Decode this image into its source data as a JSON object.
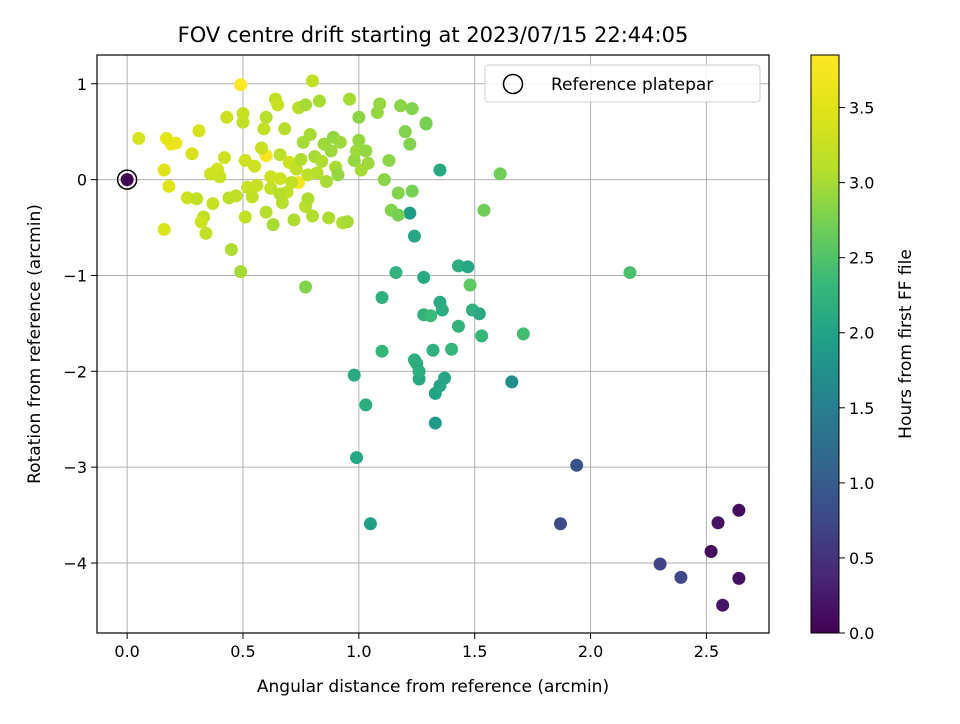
{
  "chart_data": {
    "type": "scatter",
    "title": "FOV centre drift starting at 2023/07/15 22:44:05",
    "xlabel": "Angular distance from reference (arcmin)",
    "ylabel": "Rotation from reference (arcmin)",
    "xlim": [
      -0.13,
      2.77
    ],
    "ylim": [
      -4.73,
      1.3
    ],
    "x_ticks": [
      "0.0",
      "0.5",
      "1.0",
      "1.5",
      "2.0",
      "2.5"
    ],
    "y_ticks": [
      "1",
      "0",
      "−1",
      "−2",
      "−3",
      "−4"
    ],
    "grid": true,
    "legend": {
      "position": "top-right",
      "label": "Reference platepar"
    },
    "reference_point": {
      "x": 0.0,
      "y": 0.0
    },
    "colorbar": {
      "label": "Hours from first FF file",
      "range": [
        0.0,
        3.85
      ],
      "ticks": [
        "0.0",
        "0.5",
        "1.0",
        "1.5",
        "2.0",
        "2.5",
        "3.0",
        "3.5"
      ],
      "colormap": "viridis"
    },
    "points": [
      {
        "x": 0.0,
        "y": 0.0,
        "h": 0.0
      },
      {
        "x": 2.64,
        "y": -3.45,
        "h": 0.12
      },
      {
        "x": 2.55,
        "y": -3.58,
        "h": 0.18
      },
      {
        "x": 2.52,
        "y": -3.88,
        "h": 0.1
      },
      {
        "x": 2.64,
        "y": -4.16,
        "h": 0.15
      },
      {
        "x": 2.57,
        "y": -4.44,
        "h": 0.2
      },
      {
        "x": 2.3,
        "y": -4.01,
        "h": 0.7
      },
      {
        "x": 2.39,
        "y": -4.15,
        "h": 0.75
      },
      {
        "x": 1.87,
        "y": -3.59,
        "h": 0.8
      },
      {
        "x": 1.94,
        "y": -2.98,
        "h": 0.9
      },
      {
        "x": 1.66,
        "y": -2.11,
        "h": 1.7
      },
      {
        "x": 1.05,
        "y": -3.59,
        "h": 1.95
      },
      {
        "x": 0.99,
        "y": -2.9,
        "h": 2.05
      },
      {
        "x": 0.98,
        "y": -2.04,
        "h": 2.1
      },
      {
        "x": 1.03,
        "y": -2.35,
        "h": 2.15
      },
      {
        "x": 1.33,
        "y": -2.54,
        "h": 1.9
      },
      {
        "x": 1.33,
        "y": -2.23,
        "h": 2.0
      },
      {
        "x": 1.37,
        "y": -2.07,
        "h": 2.05
      },
      {
        "x": 1.35,
        "y": -2.15,
        "h": 2.05
      },
      {
        "x": 1.26,
        "y": -2.08,
        "h": 2.1
      },
      {
        "x": 1.26,
        "y": -2.0,
        "h": 2.15
      },
      {
        "x": 1.24,
        "y": -1.88,
        "h": 2.2
      },
      {
        "x": 1.25,
        "y": -1.92,
        "h": 2.15
      },
      {
        "x": 1.32,
        "y": -1.78,
        "h": 2.2
      },
      {
        "x": 1.1,
        "y": -1.79,
        "h": 2.3
      },
      {
        "x": 1.4,
        "y": -1.77,
        "h": 2.3
      },
      {
        "x": 1.28,
        "y": -1.41,
        "h": 2.25
      },
      {
        "x": 1.31,
        "y": -1.42,
        "h": 2.35
      },
      {
        "x": 1.35,
        "y": -1.28,
        "h": 2.1
      },
      {
        "x": 1.36,
        "y": -1.36,
        "h": 2.15
      },
      {
        "x": 1.43,
        "y": -1.53,
        "h": 2.25
      },
      {
        "x": 1.49,
        "y": -1.36,
        "h": 2.2
      },
      {
        "x": 1.52,
        "y": -1.4,
        "h": 2.1
      },
      {
        "x": 1.53,
        "y": -1.63,
        "h": 2.3
      },
      {
        "x": 1.71,
        "y": -1.61,
        "h": 2.4
      },
      {
        "x": 1.1,
        "y": -1.23,
        "h": 2.2
      },
      {
        "x": 1.16,
        "y": -0.97,
        "h": 2.25
      },
      {
        "x": 1.28,
        "y": -1.02,
        "h": 2.1
      },
      {
        "x": 1.43,
        "y": -0.9,
        "h": 2.15
      },
      {
        "x": 1.47,
        "y": -0.91,
        "h": 2.05
      },
      {
        "x": 1.48,
        "y": -1.1,
        "h": 2.6
      },
      {
        "x": 1.24,
        "y": -0.59,
        "h": 2.05
      },
      {
        "x": 1.22,
        "y": -0.35,
        "h": 1.9
      },
      {
        "x": 1.35,
        "y": 0.1,
        "h": 2.1
      },
      {
        "x": 2.17,
        "y": -0.97,
        "h": 2.45
      },
      {
        "x": 1.54,
        "y": -0.32,
        "h": 2.7
      },
      {
        "x": 1.61,
        "y": 0.06,
        "h": 2.7
      },
      {
        "x": 0.77,
        "y": -1.12,
        "h": 2.8
      },
      {
        "x": 0.49,
        "y": -0.96,
        "h": 3.0
      },
      {
        "x": 0.45,
        "y": -0.73,
        "h": 3.05
      },
      {
        "x": 0.16,
        "y": -0.52,
        "h": 3.45
      },
      {
        "x": 0.34,
        "y": -0.56,
        "h": 3.2
      },
      {
        "x": 0.49,
        "y": 0.99,
        "h": 3.85
      },
      {
        "x": 0.6,
        "y": 0.25,
        "h": 3.8
      },
      {
        "x": 0.74,
        "y": -0.03,
        "h": 3.8
      },
      {
        "x": 0.19,
        "y": 0.37,
        "h": 3.7
      },
      {
        "x": 0.21,
        "y": 0.38,
        "h": 3.65
      },
      {
        "x": 0.17,
        "y": 0.43,
        "h": 3.55
      },
      {
        "x": 0.05,
        "y": 0.43,
        "h": 3.4
      },
      {
        "x": 0.16,
        "y": 0.1,
        "h": 3.5
      },
      {
        "x": 0.18,
        "y": -0.07,
        "h": 3.5
      },
      {
        "x": 0.26,
        "y": -0.19,
        "h": 3.3
      },
      {
        "x": 0.28,
        "y": 0.27,
        "h": 3.4
      },
      {
        "x": 0.31,
        "y": 0.51,
        "h": 3.4
      },
      {
        "x": 0.33,
        "y": -0.39,
        "h": 3.2
      },
      {
        "x": 0.32,
        "y": -0.44,
        "h": 3.3
      },
      {
        "x": 0.3,
        "y": -0.2,
        "h": 3.2
      },
      {
        "x": 0.36,
        "y": 0.06,
        "h": 3.3
      },
      {
        "x": 0.39,
        "y": 0.11,
        "h": 3.35
      },
      {
        "x": 0.37,
        "y": -0.25,
        "h": 3.25
      },
      {
        "x": 0.42,
        "y": 0.23,
        "h": 3.3
      },
      {
        "x": 0.43,
        "y": 0.65,
        "h": 3.3
      },
      {
        "x": 0.44,
        "y": -0.19,
        "h": 3.15
      },
      {
        "x": 0.4,
        "y": 0.03,
        "h": 3.3
      },
      {
        "x": 0.47,
        "y": -0.17,
        "h": 3.2
      },
      {
        "x": 0.5,
        "y": 0.6,
        "h": 3.2
      },
      {
        "x": 0.5,
        "y": 0.69,
        "h": 3.25
      },
      {
        "x": 0.51,
        "y": 0.2,
        "h": 3.3
      },
      {
        "x": 0.52,
        "y": -0.08,
        "h": 3.25
      },
      {
        "x": 0.51,
        "y": -0.39,
        "h": 3.2
      },
      {
        "x": 0.54,
        "y": -0.18,
        "h": 3.2
      },
      {
        "x": 0.55,
        "y": 0.14,
        "h": 3.3
      },
      {
        "x": 0.58,
        "y": 0.33,
        "h": 3.25
      },
      {
        "x": 0.59,
        "y": 0.53,
        "h": 3.2
      },
      {
        "x": 0.6,
        "y": 0.65,
        "h": 3.1
      },
      {
        "x": 0.6,
        "y": -0.34,
        "h": 3.1
      },
      {
        "x": 0.62,
        "y": -0.09,
        "h": 3.2
      },
      {
        "x": 0.63,
        "y": -0.47,
        "h": 3.0
      },
      {
        "x": 0.64,
        "y": 0.84,
        "h": 3.2
      },
      {
        "x": 0.65,
        "y": 0.78,
        "h": 3.25
      },
      {
        "x": 0.66,
        "y": 0.26,
        "h": 3.15
      },
      {
        "x": 0.66,
        "y": 0.01,
        "h": 3.3
      },
      {
        "x": 0.67,
        "y": -0.24,
        "h": 3.1
      },
      {
        "x": 0.68,
        "y": 0.53,
        "h": 3.1
      },
      {
        "x": 0.69,
        "y": -0.13,
        "h": 3.2
      },
      {
        "x": 0.7,
        "y": 0.18,
        "h": 3.3
      },
      {
        "x": 0.71,
        "y": -0.03,
        "h": 3.2
      },
      {
        "x": 0.72,
        "y": -0.42,
        "h": 3.05
      },
      {
        "x": 0.73,
        "y": 0.11,
        "h": 3.2
      },
      {
        "x": 0.74,
        "y": 0.75,
        "h": 3.1
      },
      {
        "x": 0.75,
        "y": 0.21,
        "h": 3.05
      },
      {
        "x": 0.76,
        "y": 0.39,
        "h": 3.0
      },
      {
        "x": 0.77,
        "y": -0.28,
        "h": 3.1
      },
      {
        "x": 0.77,
        "y": 0.78,
        "h": 3.0
      },
      {
        "x": 0.78,
        "y": 0.05,
        "h": 3.15
      },
      {
        "x": 0.79,
        "y": 0.47,
        "h": 3.0
      },
      {
        "x": 0.8,
        "y": 1.03,
        "h": 3.2
      },
      {
        "x": 0.8,
        "y": -0.38,
        "h": 3.05
      },
      {
        "x": 0.81,
        "y": 0.24,
        "h": 3.0
      },
      {
        "x": 0.82,
        "y": 0.07,
        "h": 3.1
      },
      {
        "x": 0.83,
        "y": 0.82,
        "h": 3.0
      },
      {
        "x": 0.84,
        "y": 0.19,
        "h": 3.05
      },
      {
        "x": 0.85,
        "y": 0.37,
        "h": 2.95
      },
      {
        "x": 0.86,
        "y": -0.02,
        "h": 3.0
      },
      {
        "x": 0.87,
        "y": -0.4,
        "h": 3.05
      },
      {
        "x": 0.88,
        "y": 0.3,
        "h": 2.95
      },
      {
        "x": 0.89,
        "y": 0.44,
        "h": 2.9
      },
      {
        "x": 0.9,
        "y": 0.13,
        "h": 3.0
      },
      {
        "x": 0.91,
        "y": 0.05,
        "h": 2.9
      },
      {
        "x": 0.92,
        "y": 0.39,
        "h": 2.95
      },
      {
        "x": 0.93,
        "y": -0.45,
        "h": 3.05
      },
      {
        "x": 0.95,
        "y": -0.44,
        "h": 3.0
      },
      {
        "x": 0.96,
        "y": 0.84,
        "h": 3.0
      },
      {
        "x": 0.98,
        "y": 0.2,
        "h": 2.9
      },
      {
        "x": 0.99,
        "y": 0.3,
        "h": 2.95
      },
      {
        "x": 1.0,
        "y": 0.65,
        "h": 2.85
      },
      {
        "x": 1.0,
        "y": 0.41,
        "h": 2.9
      },
      {
        "x": 1.01,
        "y": 0.1,
        "h": 3.0
      },
      {
        "x": 1.03,
        "y": 0.3,
        "h": 2.9
      },
      {
        "x": 1.04,
        "y": 0.17,
        "h": 2.95
      },
      {
        "x": 1.08,
        "y": 0.7,
        "h": 2.9
      },
      {
        "x": 1.09,
        "y": 0.79,
        "h": 2.9
      },
      {
        "x": 1.11,
        "y": 0.0,
        "h": 2.85
      },
      {
        "x": 1.13,
        "y": 0.2,
        "h": 2.85
      },
      {
        "x": 1.14,
        "y": -0.32,
        "h": 2.8
      },
      {
        "x": 1.17,
        "y": -0.14,
        "h": 2.8
      },
      {
        "x": 1.17,
        "y": -0.37,
        "h": 2.75
      },
      {
        "x": 1.18,
        "y": 0.77,
        "h": 2.85
      },
      {
        "x": 1.2,
        "y": 0.5,
        "h": 2.8
      },
      {
        "x": 1.22,
        "y": 0.37,
        "h": 2.8
      },
      {
        "x": 1.23,
        "y": 0.74,
        "h": 2.8
      },
      {
        "x": 1.23,
        "y": -0.12,
        "h": 2.75
      },
      {
        "x": 1.29,
        "y": 0.59,
        "h": 2.75
      },
      {
        "x": 1.29,
        "y": 0.58,
        "h": 2.75
      },
      {
        "x": 0.66,
        "y": -0.15,
        "h": 3.1
      },
      {
        "x": 0.78,
        "y": -0.2,
        "h": 3.05
      },
      {
        "x": 0.62,
        "y": 0.03,
        "h": 3.3
      },
      {
        "x": 0.56,
        "y": -0.06,
        "h": 3.25
      }
    ]
  }
}
